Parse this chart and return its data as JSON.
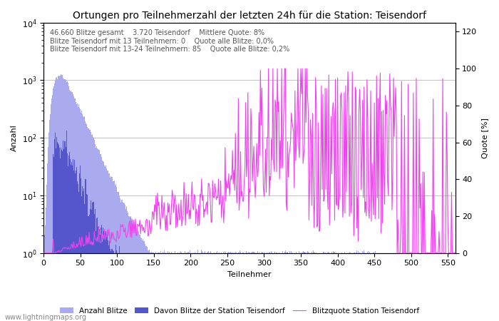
{
  "title": "Ortungen pro Teilnehmerzahl der letzten 24h für die Station: Teisendorf",
  "xlabel": "Teilnehmer",
  "ylabel_left": "Anzahl",
  "ylabel_right": "Quote [%]",
  "annotation_lines": [
    "46.660 Blitze gesamt    3.720 Teisendorf    Mittlere Quote: 8%",
    "Blitze Teisendorf mit 13 Teilnehmern: 0    Quote alle Blitze: 0,0%",
    "Blitze Teisendorf mit 13-24 Teilnehmern: 85    Quote alle Blitze: 0,2%"
  ],
  "watermark": "www.lightningmaps.org",
  "bar_color_total": "#aaaaee",
  "bar_color_station": "#5555cc",
  "line_color_quote": "#ee44ee",
  "xlim": [
    0,
    560
  ],
  "ylim_log": [
    1,
    10000
  ],
  "ylim_right": [
    0,
    125
  ],
  "yticks_right": [
    0,
    20,
    40,
    60,
    80,
    100,
    120
  ],
  "x_ticks": [
    0,
    50,
    100,
    150,
    200,
    250,
    300,
    350,
    400,
    450,
    500,
    550
  ],
  "legend_entries": [
    "Anzahl Blitze",
    "Davon Blitze der Station Teisendorf",
    "Blitzquote Station Teisendorf"
  ]
}
